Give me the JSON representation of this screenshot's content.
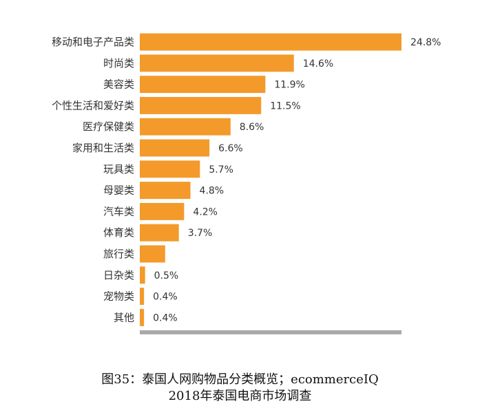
{
  "chart_data": {
    "type": "bar",
    "orientation": "horizontal",
    "categories": [
      "移动和电子产品类",
      "时尚类",
      "美容类",
      "个性生活和爱好类",
      "医疗保健类",
      "家用和生活类",
      "玩具类",
      "母婴类",
      "汽车类",
      "体育类",
      "旅行类",
      "日杂类",
      "宠物类",
      "其他"
    ],
    "values": [
      24.8,
      14.6,
      11.9,
      11.5,
      8.6,
      6.6,
      5.7,
      4.8,
      4.2,
      3.7,
      2.4,
      0.5,
      0.4,
      0.4
    ],
    "value_labels": [
      "24.8%",
      "14.6%",
      "11.9%",
      "11.5%",
      "8.6%",
      "6.6%",
      "5.7%",
      "4.8%",
      "4.2%",
      "3.7%",
      "",
      "0.5%",
      "0.4%",
      "0.4%"
    ],
    "xlim": [
      0,
      24.8
    ],
    "grid": false,
    "legend": "none",
    "colors": {
      "bar": "#F39A2B",
      "axis": "#A9A9A9"
    }
  },
  "caption": {
    "line1": "图35：泰国人网购物品分类概览；ecommerceIQ",
    "line2": "2018年泰国电商市场调查"
  }
}
